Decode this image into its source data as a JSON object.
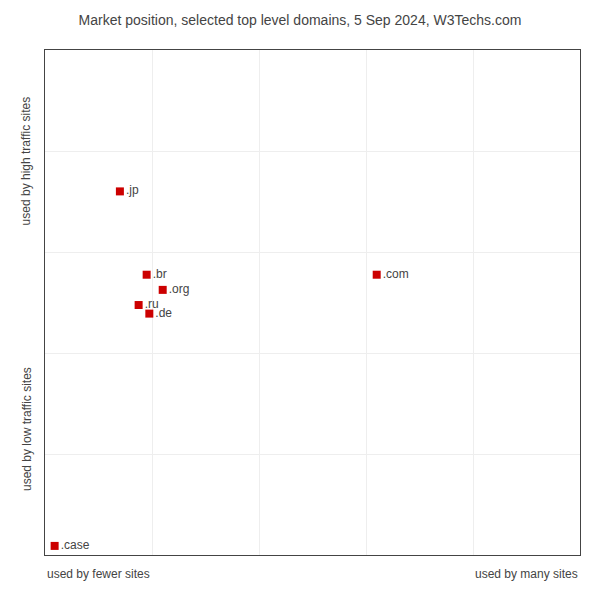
{
  "chart_data": {
    "type": "scatter",
    "title": "Market position, selected top level domains, 5 Sep 2024, W3Techs.com",
    "xlabel_left": "used by fewer sites",
    "xlabel_right": "used by many sites",
    "ylabel_top": "used by high traffic sites",
    "ylabel_bottom": "used by low traffic sites",
    "x": [
      0.14,
      0.62,
      0.19,
      0.22,
      0.175,
      0.195,
      0.018
    ],
    "values": [
      0.72,
      0.555,
      0.555,
      0.525,
      0.495,
      0.478,
      0.018
    ],
    "point_labels": [
      ".jp",
      ".com",
      ".br",
      ".org",
      ".ru",
      ".de",
      ".case"
    ],
    "color": "#cc0000",
    "marker": "square",
    "xlim": [
      0,
      1
    ],
    "ylim": [
      0,
      1
    ],
    "xticks": [
      0.2,
      0.4,
      0.6,
      0.8
    ],
    "yticks": [
      0.2,
      0.4,
      0.6,
      0.8
    ],
    "grid": true,
    "tick_labels": false
  }
}
